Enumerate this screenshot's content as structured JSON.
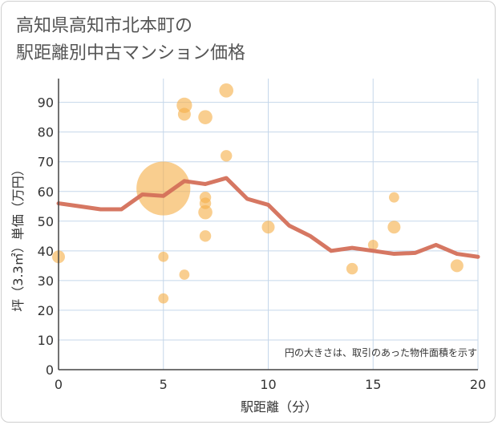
{
  "chart_data": {
    "type": "scatter",
    "title_line1": "高知県高知市北本町の",
    "title_line2": "駅距離別中古マンション価格",
    "xlabel": "駅距離（分）",
    "ylabel": "坪（3.3㎡）単価（万円）",
    "note": "円の大きさは、取引のあった物件面積を示す",
    "xlim": [
      0,
      20
    ],
    "ylim": [
      0,
      98
    ],
    "xticks": [
      0,
      5,
      10,
      15,
      20
    ],
    "yticks": [
      0,
      10,
      20,
      30,
      40,
      50,
      60,
      70,
      80,
      90
    ],
    "colors": {
      "bubble": "#f5b04a",
      "line": "#d4705a",
      "grid": "#c5d7ea",
      "axis": "#444444"
    },
    "scatter": [
      {
        "x": 0,
        "y": 38,
        "size": 1.0
      },
      {
        "x": 5,
        "y": 61,
        "size": 4.2
      },
      {
        "x": 5,
        "y": 38,
        "size": 0.8
      },
      {
        "x": 5,
        "y": 24,
        "size": 0.8
      },
      {
        "x": 6,
        "y": 89,
        "size": 1.2
      },
      {
        "x": 6,
        "y": 86,
        "size": 1.0
      },
      {
        "x": 6,
        "y": 32,
        "size": 0.8
      },
      {
        "x": 7,
        "y": 85,
        "size": 1.1
      },
      {
        "x": 7,
        "y": 58,
        "size": 0.9
      },
      {
        "x": 7,
        "y": 56,
        "size": 0.9
      },
      {
        "x": 7,
        "y": 53,
        "size": 1.1
      },
      {
        "x": 7,
        "y": 45,
        "size": 0.9
      },
      {
        "x": 8,
        "y": 94,
        "size": 1.1
      },
      {
        "x": 8,
        "y": 72,
        "size": 0.9
      },
      {
        "x": 10,
        "y": 48,
        "size": 1.0
      },
      {
        "x": 14,
        "y": 34,
        "size": 0.9
      },
      {
        "x": 15,
        "y": 42,
        "size": 0.8
      },
      {
        "x": 16,
        "y": 58,
        "size": 0.8
      },
      {
        "x": 16,
        "y": 48,
        "size": 1.0
      },
      {
        "x": 19,
        "y": 35,
        "size": 1.0
      }
    ],
    "trend": {
      "x": [
        0,
        1,
        2,
        3,
        4,
        5,
        6,
        7,
        8,
        9,
        10,
        11,
        12,
        13,
        14,
        15,
        16,
        17,
        18,
        19,
        20
      ],
      "y": [
        56,
        55,
        54,
        54,
        59,
        58.5,
        63.5,
        62.5,
        64.5,
        57.5,
        55.5,
        48.5,
        45,
        40,
        41,
        40,
        39,
        39.3,
        42,
        39,
        38
      ]
    }
  }
}
